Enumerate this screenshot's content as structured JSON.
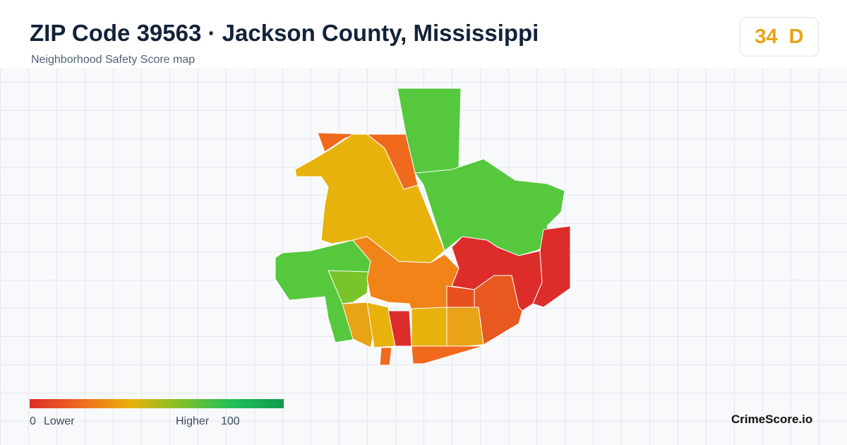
{
  "header": {
    "title": "ZIP Code 39563 · Jackson County, Mississippi",
    "subtitle": "Neighborhood Safety Score map"
  },
  "score": {
    "value": 34,
    "grade": "D"
  },
  "legend": {
    "min": 0,
    "min_label": "Lower",
    "max_label": "Higher",
    "max": 100
  },
  "footer": {
    "brand": "CrimeScore.io"
  }
}
